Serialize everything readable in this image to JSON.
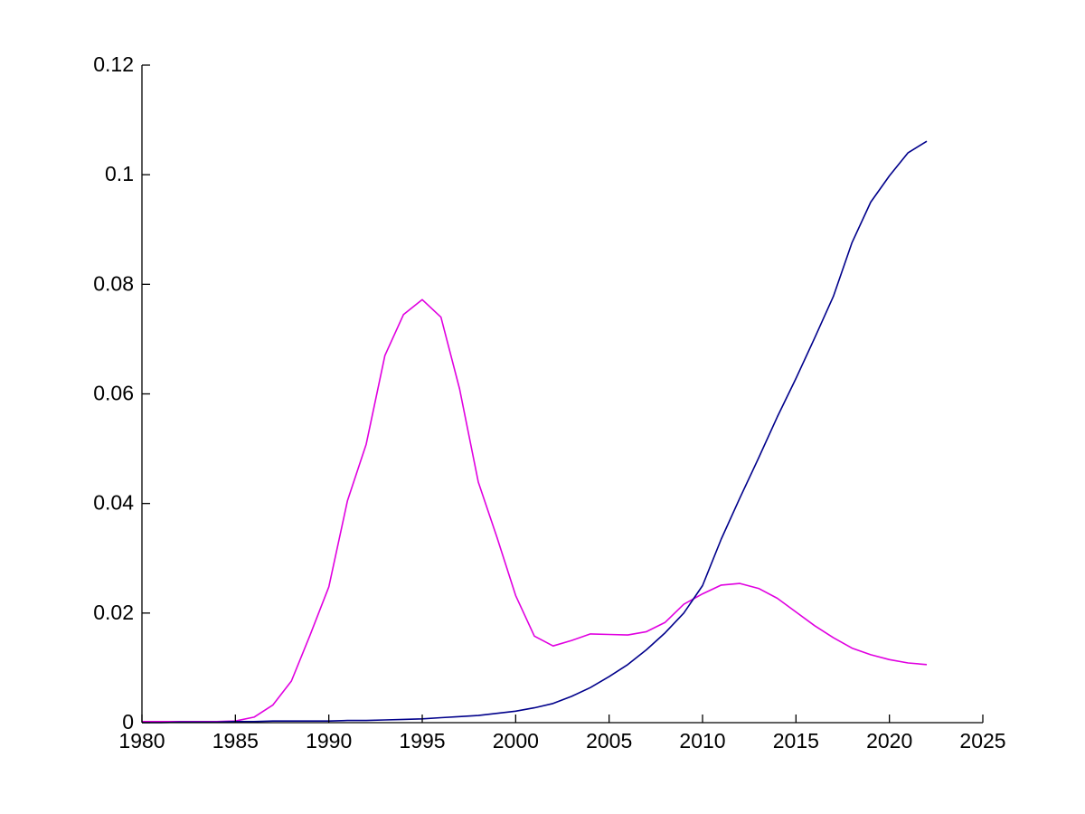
{
  "figure": {
    "background_color": "#ffffff",
    "axis_color": "#000000",
    "tick_label_fontsize": 23
  },
  "chart_data": {
    "type": "line",
    "title": "",
    "xlabel": "",
    "ylabel": "",
    "xlim": [
      1980,
      2025
    ],
    "ylim": [
      0,
      0.12
    ],
    "grid": false,
    "legend": "none",
    "xticks": [
      1980,
      1985,
      1990,
      1995,
      2000,
      2005,
      2010,
      2015,
      2020,
      2025
    ],
    "xtick_labels": [
      "1980",
      "1985",
      "1990",
      "1995",
      "2000",
      "2005",
      "2010",
      "2015",
      "2020",
      "2025"
    ],
    "yticks": [
      0,
      0.02,
      0.04,
      0.06,
      0.08,
      0.1,
      0.12
    ],
    "ytick_labels": [
      "0",
      "0.02",
      "0.04",
      "0.06",
      "0.08",
      "0.1",
      "0.12"
    ],
    "x": [
      1980,
      1981,
      1982,
      1983,
      1984,
      1985,
      1986,
      1987,
      1988,
      1989,
      1990,
      1991,
      1992,
      1993,
      1994,
      1995,
      1996,
      1997,
      1998,
      1999,
      2000,
      2001,
      2002,
      2003,
      2004,
      2005,
      2006,
      2007,
      2008,
      2009,
      2010,
      2011,
      2012,
      2013,
      2014,
      2015,
      2016,
      2017,
      2018,
      2019,
      2020,
      2021,
      2022
    ],
    "series": [
      {
        "name": "magenta-series",
        "color": "#E000E0",
        "line_width": 1.6,
        "values": [
          0.0002,
          0.0002,
          0.0002,
          0.0002,
          0.0002,
          0.0003,
          0.001,
          0.0032,
          0.0076,
          0.016,
          0.0248,
          0.0405,
          0.0508,
          0.067,
          0.0745,
          0.0772,
          0.074,
          0.0609,
          0.0439,
          0.0338,
          0.0232,
          0.0158,
          0.014,
          0.015,
          0.0162,
          0.0161,
          0.016,
          0.0166,
          0.0183,
          0.0216,
          0.0235,
          0.0251,
          0.0254,
          0.0245,
          0.0227,
          0.0202,
          0.0177,
          0.0155,
          0.0136,
          0.0124,
          0.0115,
          0.0109,
          0.0106
        ]
      },
      {
        "name": "dark-blue-series",
        "color": "#00008B",
        "line_width": 1.6,
        "values": [
          0.0,
          0.0,
          0.0001,
          0.0001,
          0.0001,
          0.0002,
          0.0002,
          0.0003,
          0.0003,
          0.0003,
          0.0003,
          0.0004,
          0.0004,
          0.0005,
          0.0006,
          0.0007,
          0.0009,
          0.0011,
          0.0013,
          0.0017,
          0.0021,
          0.0027,
          0.0035,
          0.0048,
          0.0064,
          0.0084,
          0.0106,
          0.0133,
          0.0164,
          0.02,
          0.025,
          0.0335,
          0.041,
          0.0483,
          0.0558,
          0.0628,
          0.0702,
          0.0778,
          0.0876,
          0.095,
          0.0998,
          0.104,
          0.1061
        ]
      }
    ]
  }
}
